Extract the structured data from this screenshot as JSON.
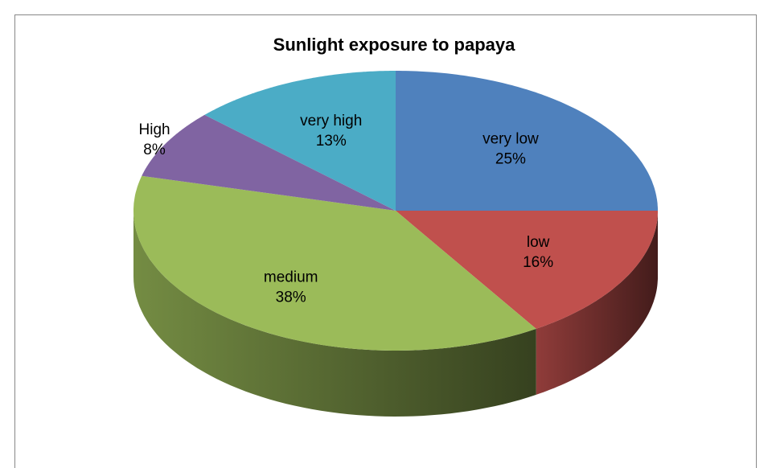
{
  "chart_data": {
    "type": "pie",
    "title": "Sunlight exposure to papaya",
    "categories": [
      "very low",
      "low",
      "medium",
      "High",
      "very high"
    ],
    "values": [
      25,
      16,
      38,
      8,
      13
    ],
    "value_labels": [
      "25%",
      "16%",
      "38%",
      "8%",
      "13%"
    ],
    "colors": [
      "#4f81bd",
      "#c0504d",
      "#9bbb59",
      "#8064a2",
      "#4bacc6"
    ]
  }
}
